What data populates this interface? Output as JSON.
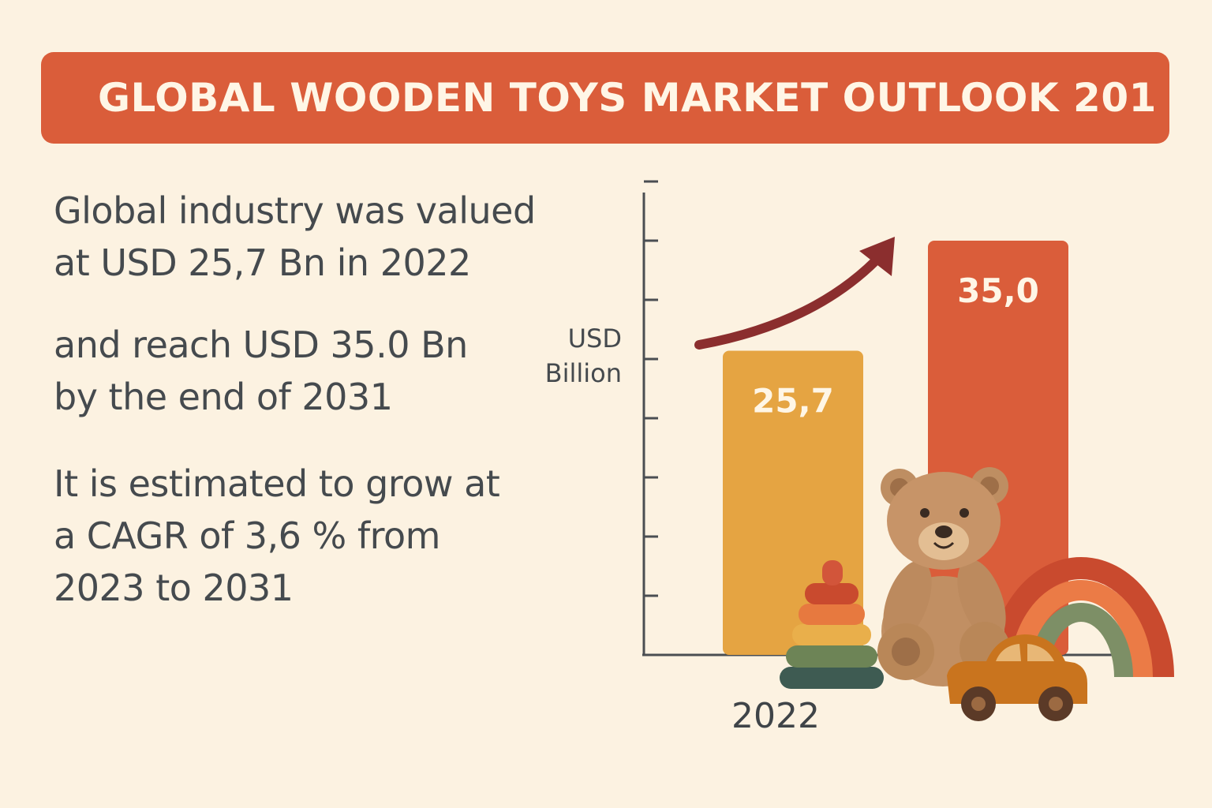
{
  "header": {
    "title": "GLOBAL WOODEN TOYS MARKET OUTLOOK 201"
  },
  "text": {
    "line1": "Global industry was valued",
    "line2": "at USD 25,7 Bn in 2022",
    "line3": "and reach USD 35.0 Bn",
    "line4": "by the end of 2031",
    "line5": "It is estimated to grow at",
    "line6": "a CAGR of 3,6 % from",
    "line7": "2023 to 2031"
  },
  "colors": {
    "background": "#FCF2E1",
    "banner": "#DA5D3A",
    "bar_2022": "#E5A442",
    "bar_2031": "#DA5D3A",
    "arrow": "#8B2E2E",
    "text": "#454A4E"
  },
  "chart_data": {
    "type": "bar",
    "ylabel_line1": "USD",
    "ylabel_line2": "Billion",
    "categories": [
      "2022",
      ""
    ],
    "x_tick_labels": [
      "2022"
    ],
    "values": [
      25.7,
      35.0
    ],
    "data_labels": [
      "25,7",
      "35,0"
    ],
    "bar_colors": [
      "#E5A442",
      "#DA5D3A"
    ],
    "ylim": [
      0,
      40
    ],
    "y_tick_count": 8,
    "grid": false,
    "legend": "none",
    "annotation": "upward-trend-arrow"
  },
  "decorations": [
    "teddy-bear-icon",
    "stacking-rings-icon",
    "rainbow-icon",
    "toy-car-icon"
  ]
}
